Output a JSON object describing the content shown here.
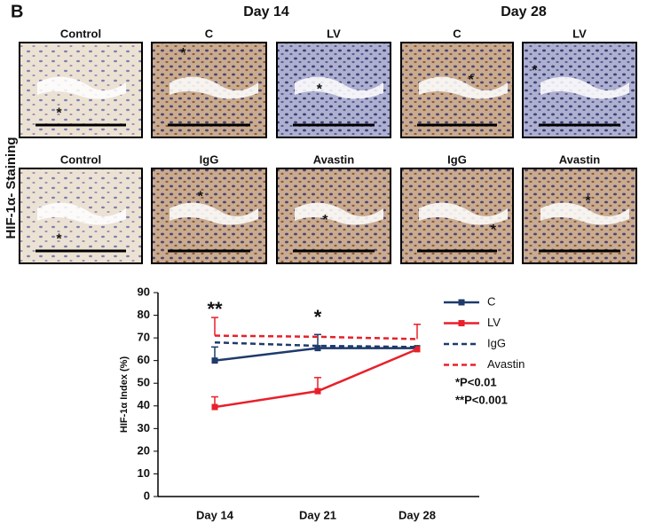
{
  "figure": {
    "panel_letter": "B",
    "side_label": "HIF-1α- Staining",
    "day_headers": [
      "Day 14",
      "Day 28"
    ],
    "rows": [
      [
        {
          "label": "Control",
          "marker": "*"
        },
        {
          "label": "C",
          "marker": "*"
        },
        {
          "label": "LV",
          "marker": "*"
        },
        {
          "label": "C",
          "marker": "*"
        },
        {
          "label": "LV",
          "marker": "*"
        }
      ],
      [
        {
          "label": "Control",
          "marker": "*"
        },
        {
          "label": "IgG",
          "marker": "*"
        },
        {
          "label": "Avastin",
          "marker": "*"
        },
        {
          "label": "IgG",
          "marker": "*"
        },
        {
          "label": "Avastin",
          "marker": "*"
        }
      ]
    ]
  },
  "chart_data": {
    "type": "line",
    "y_label": "HIF-1α Index (%)",
    "categories": [
      "Day 14",
      "Day 21",
      "Day 28"
    ],
    "ylim": [
      0,
      90
    ],
    "yticks": [
      0,
      10,
      20,
      30,
      40,
      50,
      60,
      70,
      80,
      90
    ],
    "series": [
      {
        "name": "C",
        "color": "#1f3a6b",
        "dash": false,
        "markers": true,
        "values": [
          60,
          65.5,
          65.5
        ],
        "errors": [
          6,
          6,
          null
        ]
      },
      {
        "name": "LV",
        "color": "#e8202a",
        "dash": false,
        "markers": true,
        "values": [
          39.5,
          46.5,
          65
        ],
        "errors": [
          4.5,
          6,
          null
        ]
      },
      {
        "name": "IgG",
        "color": "#1f3a6b",
        "dash": true,
        "markers": false,
        "values": [
          68,
          66.5,
          66
        ],
        "errors": [
          null,
          null,
          null
        ]
      },
      {
        "name": "Avastin",
        "color": "#e8202a",
        "dash": true,
        "markers": false,
        "values": [
          71,
          70.5,
          69.5
        ],
        "errors": [
          8,
          null,
          6.5
        ]
      }
    ],
    "annotations": [
      "**",
      "*"
    ],
    "notes": [
      "*P<0.01",
      "**P<0.001"
    ]
  }
}
